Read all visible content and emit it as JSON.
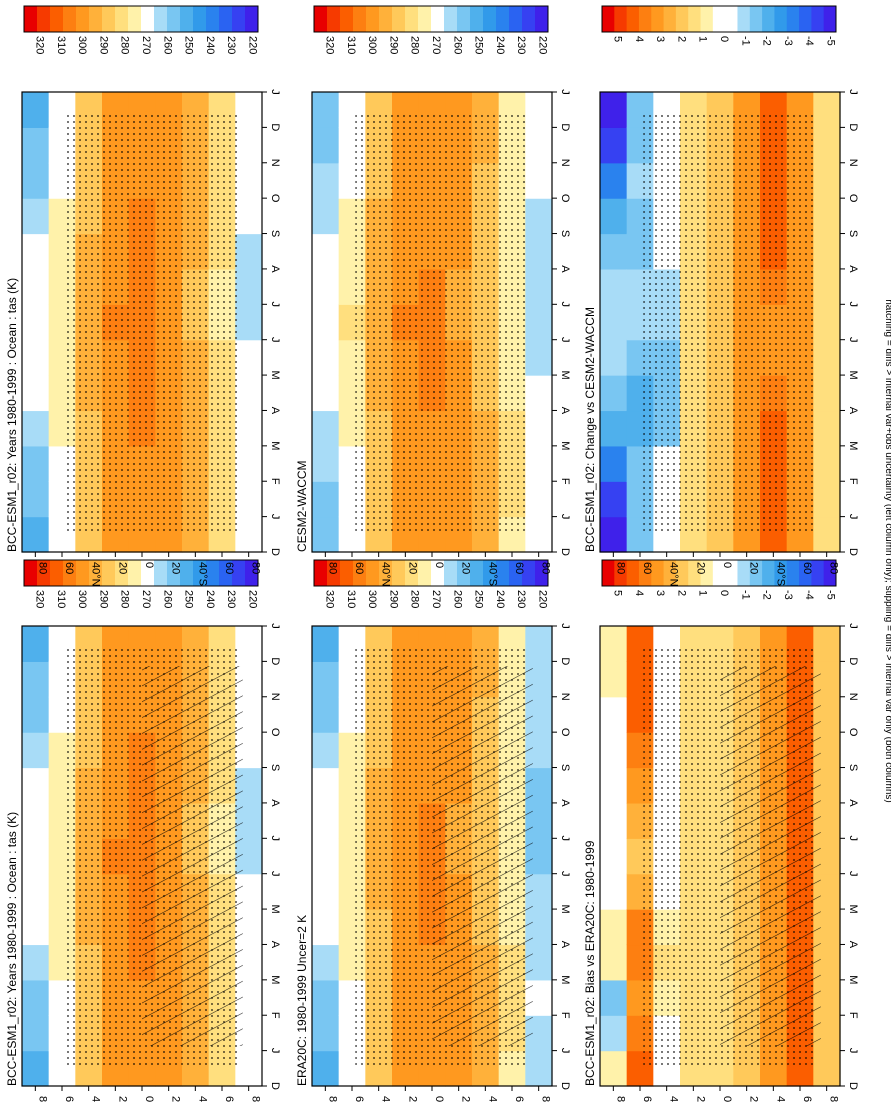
{
  "footer": "hatching = diffs > internal var+obs uncertainty (left column only); stippling = diffs > internal var only (both columns)",
  "colors": {
    "abs_scale": [
      "#e80000",
      "#f63a00",
      "#fb5e00",
      "#fd7f11",
      "#ff991f",
      "#ffb13a",
      "#ffc95a",
      "#ffdf7e",
      "#fff2aa",
      "#ffffff",
      "#a8dcf7",
      "#79c6f2",
      "#4fb0ec",
      "#319aea",
      "#2a82ee",
      "#2a63f2",
      "#3641f2",
      "#3f21ea"
    ],
    "diff_scale": [
      "#e80000",
      "#f63a00",
      "#fb5e00",
      "#fd7f11",
      "#ff991f",
      "#ffb13a",
      "#ffc95a",
      "#ffdf7e",
      "#fff2aa",
      "#ffffff",
      "#ffffff",
      "#a8dcf7",
      "#79c6f2",
      "#4fb0ec",
      "#319aea",
      "#2a82ee",
      "#2a63f2",
      "#3641f2",
      "#3f21ea"
    ]
  },
  "chart_data": [
    {
      "type": "heatmap",
      "panel": "top-left",
      "title": "BCC-ESM1_r02: Years 1980-1999 : Ocean : tas (K)",
      "x_ticks": [
        "D",
        "J",
        "F",
        "M",
        "A",
        "M",
        "J",
        "J",
        "A",
        "S",
        "O",
        "N",
        "D",
        "J"
      ],
      "y_ticks": [
        "80",
        "60",
        "40°N",
        "20",
        "0",
        "20",
        "40°S",
        "60",
        "80"
      ],
      "colorbar_ticks": [
        "320",
        "310",
        "300",
        "290",
        "280",
        "270",
        "260",
        "250",
        "240",
        "230",
        "220"
      ],
      "vmin": 215,
      "vmax": 325,
      "hatching": true,
      "stippling": true,
      "values": [
        [
          250,
          250,
          254,
          258,
          262,
          266,
          268,
          268,
          266,
          262,
          258,
          254,
          251,
          250
        ],
        [
          264,
          264,
          266,
          270,
          272,
          274,
          276,
          276,
          274,
          272,
          270,
          268,
          266,
          264
        ],
        [
          284,
          284,
          284,
          286,
          288,
          290,
          292,
          292,
          291,
          289,
          287,
          285,
          284,
          284
        ],
        [
          296,
          296,
          296,
          297,
          298,
          299,
          301,
          301,
          300,
          299,
          298,
          297,
          296,
          296
        ],
        [
          300,
          300,
          300,
          301,
          302,
          302,
          302,
          302,
          302,
          301,
          301,
          300,
          300,
          300
        ],
        [
          298,
          298,
          299,
          299,
          299,
          298,
          296,
          295,
          296,
          297,
          298,
          299,
          299,
          298
        ],
        [
          292,
          292,
          293,
          293,
          292,
          290,
          288,
          287,
          288,
          289,
          290,
          291,
          292,
          292
        ],
        [
          280,
          280,
          281,
          281,
          280,
          278,
          276,
          275,
          276,
          277,
          278,
          279,
          280,
          280
        ],
        [
          268,
          268,
          270,
          270,
          268,
          266,
          262,
          260,
          261,
          263,
          265,
          267,
          268,
          268
        ]
      ]
    },
    {
      "type": "heatmap",
      "panel": "top-right",
      "title": "BCC-ESM1_r02: Years 1980-1999 : Ocean : tas (K)",
      "x_ticks": [
        "D",
        "J",
        "F",
        "M",
        "A",
        "M",
        "J",
        "J",
        "A",
        "S",
        "O",
        "N",
        "D",
        "J"
      ],
      "y_ticks": [
        "80",
        "60",
        "40°N",
        "20",
        "0",
        "20",
        "40°S",
        "60",
        "80"
      ],
      "colorbar_ticks": [
        "320",
        "310",
        "300",
        "290",
        "280",
        "270",
        "260",
        "250",
        "240",
        "230",
        "220"
      ],
      "vmin": 215,
      "vmax": 325,
      "hatching": false,
      "stippling": true,
      "values": [
        [
          250,
          250,
          254,
          258,
          262,
          266,
          268,
          268,
          266,
          262,
          258,
          254,
          251,
          250
        ],
        [
          264,
          264,
          266,
          270,
          272,
          274,
          276,
          276,
          274,
          272,
          270,
          268,
          266,
          264
        ],
        [
          284,
          284,
          284,
          286,
          288,
          290,
          292,
          292,
          291,
          289,
          287,
          285,
          284,
          284
        ],
        [
          296,
          296,
          296,
          297,
          298,
          299,
          301,
          301,
          300,
          299,
          298,
          297,
          296,
          296
        ],
        [
          300,
          300,
          300,
          301,
          302,
          302,
          302,
          302,
          302,
          301,
          301,
          300,
          300,
          300
        ],
        [
          298,
          298,
          299,
          299,
          299,
          298,
          296,
          295,
          296,
          297,
          298,
          299,
          299,
          298
        ],
        [
          292,
          292,
          293,
          293,
          292,
          290,
          288,
          287,
          288,
          289,
          290,
          291,
          292,
          292
        ],
        [
          280,
          280,
          281,
          281,
          280,
          278,
          276,
          275,
          276,
          277,
          278,
          279,
          280,
          280
        ],
        [
          268,
          268,
          270,
          270,
          268,
          266,
          262,
          260,
          261,
          263,
          265,
          267,
          268,
          268
        ]
      ]
    },
    {
      "type": "heatmap",
      "panel": "middle-left",
      "title": "ERA20C: 1980-1999 Uncer=2 K",
      "x_ticks": [
        "D",
        "J",
        "F",
        "M",
        "A",
        "M",
        "J",
        "J",
        "A",
        "S",
        "O",
        "N",
        "D",
        "J"
      ],
      "y_ticks": [
        "80",
        "60",
        "40°N",
        "20",
        "0",
        "20",
        "40°S",
        "60",
        "80"
      ],
      "colorbar_ticks": [
        "320",
        "310",
        "300",
        "290",
        "280",
        "270",
        "260",
        "250",
        "240",
        "230",
        "220"
      ],
      "vmin": 215,
      "vmax": 325,
      "hatching": true,
      "stippling": true,
      "values": [
        [
          250,
          250,
          254,
          258,
          262,
          266,
          268,
          268,
          266,
          262,
          258,
          254,
          251,
          250
        ],
        [
          264,
          264,
          266,
          270,
          272,
          274,
          276,
          276,
          274,
          272,
          270,
          268,
          266,
          264
        ],
        [
          283,
          283,
          283,
          285,
          287,
          289,
          291,
          291,
          290,
          288,
          286,
          284,
          283,
          283
        ],
        [
          295,
          295,
          295,
          296,
          297,
          298,
          300,
          300,
          299,
          298,
          297,
          296,
          295,
          295
        ],
        [
          299,
          299,
          299,
          300,
          301,
          301,
          301,
          301,
          301,
          300,
          300,
          299,
          299,
          299
        ],
        [
          296,
          296,
          297,
          297,
          297,
          296,
          294,
          293,
          294,
          295,
          296,
          297,
          297,
          296
        ],
        [
          289,
          289,
          290,
          290,
          289,
          287,
          285,
          284,
          285,
          286,
          287,
          288,
          289,
          289
        ],
        [
          276,
          276,
          277,
          277,
          276,
          274,
          272,
          271,
          272,
          273,
          274,
          275,
          276,
          276
        ],
        [
          262,
          262,
          264,
          264,
          262,
          260,
          256,
          254,
          255,
          257,
          259,
          261,
          262,
          262
        ]
      ]
    },
    {
      "type": "heatmap",
      "panel": "middle-right",
      "title": "CESM2-WACCM",
      "x_ticks": [
        "D",
        "J",
        "F",
        "M",
        "A",
        "M",
        "J",
        "J",
        "A",
        "S",
        "O",
        "N",
        "D",
        "J"
      ],
      "y_ticks": [
        "80",
        "60",
        "40°N",
        "20",
        "0",
        "20",
        "40°S",
        "60",
        "80"
      ],
      "colorbar_ticks": [
        "320",
        "310",
        "300",
        "290",
        "280",
        "270",
        "260",
        "250",
        "240",
        "230",
        "220"
      ],
      "vmin": 215,
      "vmax": 325,
      "hatching": false,
      "stippling": true,
      "values": [
        [
          252,
          252,
          256,
          260,
          264,
          268,
          270,
          270,
          268,
          264,
          260,
          256,
          253,
          252
        ],
        [
          265,
          265,
          267,
          271,
          273,
          275,
          277,
          277,
          275,
          273,
          271,
          269,
          267,
          265
        ],
        [
          285,
          285,
          285,
          287,
          289,
          291,
          293,
          293,
          292,
          290,
          288,
          286,
          285,
          285
        ],
        [
          296,
          296,
          296,
          297,
          298,
          299,
          301,
          301,
          300,
          299,
          298,
          297,
          296,
          296
        ],
        [
          299,
          299,
          299,
          300,
          301,
          301,
          301,
          301,
          301,
          300,
          300,
          299,
          299,
          299
        ],
        [
          296,
          296,
          297,
          297,
          297,
          296,
          294,
          293,
          294,
          295,
          296,
          297,
          297,
          296
        ],
        [
          289,
          289,
          290,
          290,
          289,
          287,
          285,
          284,
          285,
          286,
          287,
          288,
          289,
          289
        ],
        [
          276,
          276,
          277,
          277,
          276,
          274,
          272,
          271,
          272,
          273,
          274,
          275,
          276,
          276
        ],
        [
          266,
          266,
          268,
          268,
          266,
          264,
          260,
          258,
          259,
          261,
          263,
          265,
          266,
          266
        ]
      ]
    },
    {
      "type": "heatmap",
      "panel": "bottom-left",
      "title": "BCC-ESM1_r02: Bias vs ERA20C: 1980-1999",
      "x_ticks": [
        "D",
        "J",
        "F",
        "M",
        "A",
        "M",
        "J",
        "J",
        "A",
        "S",
        "O",
        "N",
        "D",
        "J"
      ],
      "y_ticks": [
        "80",
        "60",
        "40°N",
        "20",
        "0",
        "20",
        "40°S",
        "60",
        "80"
      ],
      "colorbar_ticks": [
        "5",
        "4",
        "3",
        "2",
        "1",
        "0",
        "-1",
        "-2",
        "-3",
        "-4",
        "-5"
      ],
      "vmin": -5.5,
      "vmax": 5.5,
      "hatching": true,
      "stippling": true,
      "values": [
        [
          0,
          1,
          -3,
          0,
          1,
          0,
          0,
          0,
          0,
          0,
          0,
          0,
          1,
          0
        ],
        [
          4,
          4,
          3,
          3,
          4,
          3,
          2,
          2,
          3,
          3,
          4,
          4,
          4,
          4
        ],
        [
          0,
          0,
          0,
          1,
          1,
          0,
          0,
          0,
          0,
          0,
          0,
          0,
          0,
          0
        ],
        [
          1,
          1,
          1,
          1,
          1,
          1,
          1,
          1,
          1,
          1,
          1,
          1,
          1,
          1
        ],
        [
          1,
          1,
          1,
          1,
          1,
          1,
          1,
          1,
          1,
          1,
          1,
          1,
          1,
          1
        ],
        [
          2,
          2,
          2,
          2,
          2,
          2,
          2,
          2,
          2,
          2,
          2,
          2,
          2,
          2
        ],
        [
          3,
          3,
          3,
          3,
          3,
          3,
          3,
          3,
          3,
          3,
          3,
          3,
          3,
          3
        ],
        [
          4,
          4,
          4,
          4,
          4,
          4,
          4,
          4,
          4,
          4,
          4,
          4,
          4,
          4
        ],
        [
          2,
          2,
          2,
          2,
          2,
          2,
          2,
          2,
          2,
          2,
          2,
          2,
          2,
          2
        ]
      ]
    },
    {
      "type": "heatmap",
      "panel": "bottom-right",
      "title": "BCC-ESM1_r02: Change vs CESM2-WACCM",
      "x_ticks": [
        "D",
        "J",
        "F",
        "M",
        "A",
        "M",
        "J",
        "J",
        "A",
        "S",
        "O",
        "N",
        "D",
        "J"
      ],
      "y_ticks": [
        "80",
        "60",
        "40°N",
        "20",
        "0",
        "20",
        "40°S",
        "60",
        "80"
      ],
      "colorbar_ticks": [
        "5",
        "4",
        "3",
        "2",
        "1",
        "0",
        "-1",
        "-2",
        "-3",
        "-4",
        "-5"
      ],
      "vmin": -5.5,
      "vmax": 5.5,
      "hatching": false,
      "stippling": true,
      "values": [
        [
          -5,
          -5,
          -4,
          -3,
          -2,
          -1,
          -1,
          -1,
          -1,
          -2,
          -3,
          -4,
          -5,
          -5
        ],
        [
          -2,
          -2,
          -1,
          -2,
          -3,
          -2,
          -1,
          -1,
          -1,
          -2,
          -1,
          -1,
          -2,
          -2
        ],
        [
          0,
          0,
          0,
          -1,
          -2,
          -2,
          -1,
          -1,
          -1,
          0,
          0,
          0,
          0,
          0
        ],
        [
          1,
          1,
          1,
          1,
          1,
          1,
          1,
          1,
          1,
          1,
          1,
          1,
          1,
          1
        ],
        [
          2,
          2,
          2,
          2,
          2,
          2,
          2,
          2,
          2,
          2,
          2,
          2,
          2,
          2
        ],
        [
          3,
          3,
          3,
          3,
          3,
          3,
          3,
          3,
          3,
          3,
          3,
          3,
          3,
          3
        ],
        [
          4,
          4,
          4,
          4,
          4,
          3,
          3,
          3,
          4,
          4,
          4,
          4,
          4,
          4
        ],
        [
          3,
          3,
          3,
          3,
          3,
          3,
          3,
          3,
          3,
          3,
          3,
          3,
          3,
          3
        ],
        [
          1,
          1,
          1,
          1,
          1,
          1,
          1,
          1,
          1,
          1,
          1,
          1,
          1,
          1
        ]
      ]
    }
  ]
}
